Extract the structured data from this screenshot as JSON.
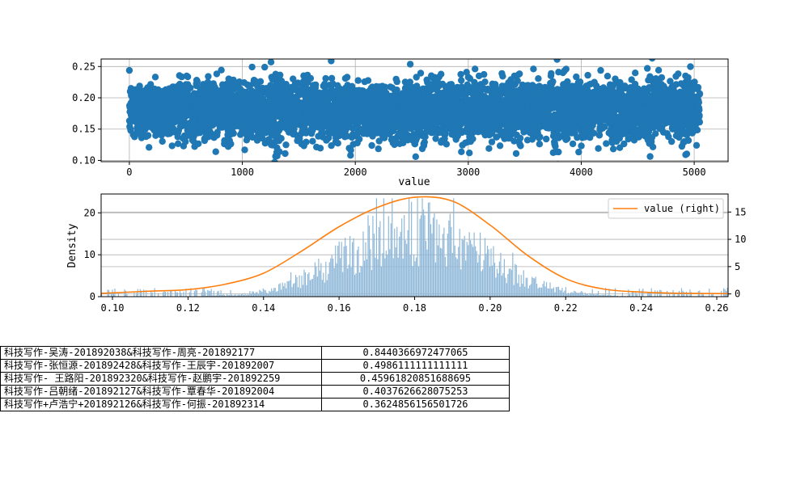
{
  "chart_data": [
    {
      "type": "scatter",
      "xlabel": "value",
      "ylabel": "",
      "xlim": [
        -250,
        5300
      ],
      "ylim": [
        0.098,
        0.262
      ],
      "xticks": [
        0,
        1000,
        2000,
        3000,
        4000,
        5000
      ],
      "yticks": [
        0.1,
        0.15,
        0.2,
        0.25
      ],
      "grid": true,
      "color": "#1f77b4",
      "n_points": 5050,
      "note_series": "random scatter sampled around mean 0.18"
    },
    {
      "type": "bar",
      "xlabel": "",
      "ylabel": "Density",
      "xlim": [
        0.097,
        0.263
      ],
      "ylim": [
        0,
        24.5
      ],
      "xticks": [
        0.1,
        0.12,
        0.14,
        0.16,
        0.18,
        0.2,
        0.22,
        0.24,
        0.26
      ],
      "yticks": [
        0,
        10,
        20
      ],
      "bar_color": "#8fb8d8",
      "grid": true
    },
    {
      "type": "line",
      "name": "value (right)",
      "legend_position": "top-right",
      "color": "#ff7f0e",
      "y2lim": [
        -0.5,
        18.3
      ],
      "y2ticks": [
        0,
        5,
        10,
        15
      ],
      "x": [
        0.097,
        0.11,
        0.12,
        0.13,
        0.14,
        0.15,
        0.16,
        0.17,
        0.18,
        0.19,
        0.2,
        0.21,
        0.22,
        0.23,
        0.24,
        0.25,
        0.263
      ],
      "values": [
        0.1,
        0.5,
        0.8,
        1.8,
        3.8,
        7.8,
        12.3,
        15.8,
        17.7,
        17.0,
        12.6,
        7.0,
        2.8,
        0.9,
        0.35,
        0.12,
        0.05
      ]
    }
  ],
  "table": {
    "rows": [
      {
        "pair": "科技写作-吴涛-201892038&科技写作-周亮-201892177",
        "score": "0.8440366972477065"
      },
      {
        "pair": "科技写作-张恒源-201892428&科技写作-王辰宇-201892007",
        "score": "0.4986111111111111"
      },
      {
        "pair": "科技写作- 王路阳-201892320&科技写作-赵鹏宇-201892259",
        "score": "0.45961820851688695"
      },
      {
        "pair": "科技写作-吕朝绪-201892127&科技写作-覃春华-201892004",
        "score": "0.4037626628075253"
      },
      {
        "pair": "科技写作+卢浩宁+201892126&科技写作-何振-201892314",
        "score": "0.3624856156501726"
      }
    ]
  }
}
